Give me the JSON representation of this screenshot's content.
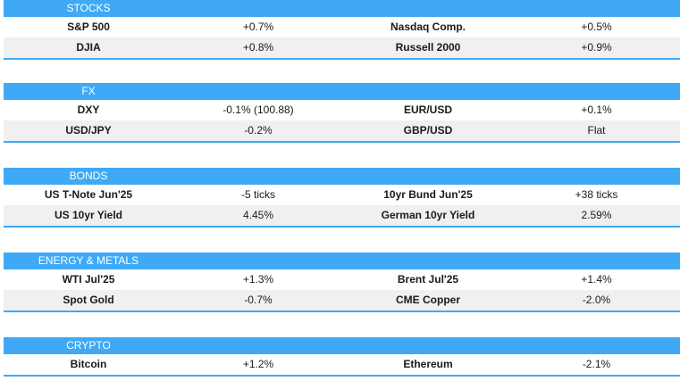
{
  "sections": [
    {
      "title": "STOCKS",
      "rows": [
        [
          "S&P 500",
          "+0.7%",
          "Nasdaq Comp.",
          "+0.5%"
        ],
        [
          "DJIA",
          "+0.8%",
          "Russell 2000",
          "+0.9%"
        ]
      ]
    },
    {
      "title": "FX",
      "rows": [
        [
          "DXY",
          "-0.1% (100.88)",
          "EUR/USD",
          "+0.1%"
        ],
        [
          "USD/JPY",
          "-0.2%",
          "GBP/USD",
          "Flat"
        ]
      ]
    },
    {
      "title": "BONDS",
      "rows": [
        [
          "US T-Note Jun'25",
          "-5 ticks",
          "10yr Bund Jun'25",
          "+38 ticks"
        ],
        [
          "US 10yr Yield",
          "4.45%",
          "German 10yr Yield",
          "2.59%"
        ]
      ]
    },
    {
      "title": "ENERGY & METALS",
      "rows": [
        [
          "WTI Jul'25",
          "+1.3%",
          "Brent Jul'25",
          "+1.4%"
        ],
        [
          "Spot Gold",
          "-0.7%",
          "CME Copper",
          "-2.0%"
        ]
      ]
    },
    {
      "title": "CRYPTO",
      "rows": [
        [
          "Bitcoin",
          "+1.2%",
          "Ethereum",
          "-2.1%"
        ]
      ]
    }
  ],
  "colors": {
    "header": "#3fa9f5",
    "alt_row": "#f0f0f0"
  }
}
